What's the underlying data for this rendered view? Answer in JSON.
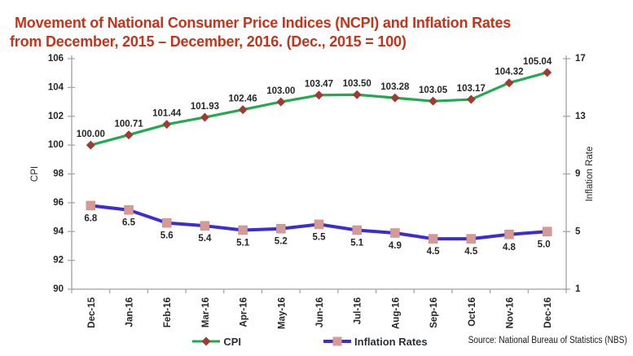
{
  "title_line1": "Movement of National Consumer Price Indices (NCPI) and Inflation Rates",
  "title_line2": "from December, 2015 – December, 2016. (Dec., 2015 = 100)",
  "source": "Source: National Bureau of Statistics (NBS)",
  "colors": {
    "title": "#C5331B",
    "cpi_line": "#23AA50",
    "cpi_marker": "#9E3C34",
    "inflation_line": "#3C2DD2",
    "inflation_marker": "#D59A94",
    "axis": "#A0A0A0",
    "tick_text": "#262626",
    "data_label_text": "#262626"
  },
  "chart_data": {
    "type": "line",
    "title": "Movement of National Consumer Price Indices (NCPI) and Inflation Rates from December, 2015 – December, 2016. (Dec., 2015 = 100)",
    "categories": [
      "Dec-15",
      "Jan-16",
      "Feb-16",
      "Mar-16",
      "Apr-16",
      "May-16",
      "Jun-16",
      "Jul-16",
      "Aug-16",
      "Sep-16",
      "Oct-16",
      "Nov-16",
      "Dec-16"
    ],
    "series": [
      {
        "name": "CPI",
        "axis": "left",
        "values": [
          100.0,
          100.71,
          101.44,
          101.93,
          102.46,
          103.0,
          103.47,
          103.5,
          103.28,
          103.05,
          103.17,
          104.32,
          105.04
        ],
        "labels": [
          "100.00",
          "100.71",
          "101.44",
          "101.93",
          "102.46",
          "103.00",
          "103.47",
          "103.50",
          "103.28",
          "103.05",
          "103.17",
          "104.32",
          "105.04"
        ],
        "color": "#23AA50",
        "marker": "diamond",
        "marker_color": "#9E3C34"
      },
      {
        "name": "Inflation Rates",
        "axis": "right",
        "values": [
          6.8,
          6.5,
          5.6,
          5.4,
          5.1,
          5.2,
          5.5,
          5.1,
          4.9,
          4.5,
          4.5,
          4.8,
          5.0
        ],
        "labels": [
          "6.8",
          "6.5",
          "5.6",
          "5.4",
          "5.1",
          "5.2",
          "5.5",
          "5.1",
          "4.9",
          "4.5",
          "4.5",
          "4.8",
          "5.0"
        ],
        "color": "#3C2DD2",
        "marker": "square",
        "marker_color": "#D59A94"
      }
    ],
    "left_axis": {
      "label": "CPI",
      "min": 90,
      "max": 106,
      "tick_step": 2
    },
    "right_axis": {
      "label": "Inflation Rate",
      "min": 1,
      "max": 17,
      "tick_step": 4
    },
    "xlabel": "",
    "ylabel": "CPI",
    "y2label": "Inflation Rate",
    "ylim": [
      90,
      106
    ],
    "y2lim": [
      1,
      17
    ],
    "grid": false,
    "legend_position": "bottom"
  }
}
